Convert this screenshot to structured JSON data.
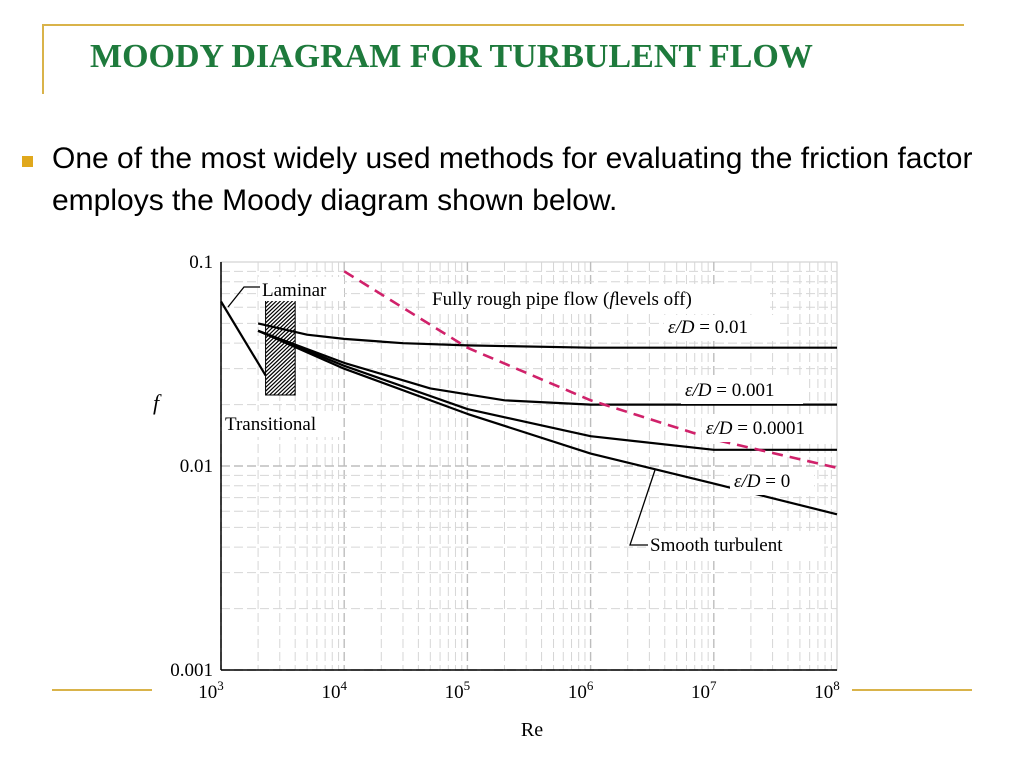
{
  "slide": {
    "title": "MOODY DIAGRAM FOR TURBULENT FLOW",
    "bullet_text": "One of the most widely used methods for evaluating the friction factor employs the Moody diagram shown below.",
    "colors": {
      "title": "#1e7a3c",
      "accent": "#d9b34a",
      "bullet": "#e0a81c",
      "rough_boundary": "#d0216a"
    }
  },
  "chart_data": {
    "type": "line",
    "xlabel": "Re",
    "ylabel": "f",
    "xscale": "log",
    "yscale": "log",
    "xlim": [
      1000,
      100000000
    ],
    "ylim": [
      0.001,
      0.1
    ],
    "grid": true,
    "x_ticks": [
      {
        "value": 1000,
        "base": "10",
        "exp": "3"
      },
      {
        "value": 10000,
        "base": "10",
        "exp": "4"
      },
      {
        "value": 100000,
        "base": "10",
        "exp": "5"
      },
      {
        "value": 1000000,
        "base": "10",
        "exp": "6"
      },
      {
        "value": 10000000,
        "base": "10",
        "exp": "7"
      },
      {
        "value": 100000000,
        "base": "10",
        "exp": "8"
      }
    ],
    "y_ticks": [
      {
        "value": 0.1,
        "label": "0.1"
      },
      {
        "value": 0.01,
        "label": "0.01"
      },
      {
        "value": 0.001,
        "label": "0.001"
      }
    ],
    "series": [
      {
        "name": "Laminar",
        "style": "solid",
        "x": [
          1000,
          2300
        ],
        "y": [
          0.064,
          0.0278
        ]
      },
      {
        "name": "ε/D = 0.01",
        "style": "solid",
        "x": [
          2000,
          5000,
          10000,
          30000,
          100000,
          1000000,
          100000000
        ],
        "y": [
          0.05,
          0.044,
          0.042,
          0.04,
          0.039,
          0.038,
          0.038
        ]
      },
      {
        "name": "ε/D = 0.001",
        "style": "solid",
        "x": [
          2000,
          10000,
          50000,
          200000,
          1000000,
          100000000
        ],
        "y": [
          0.046,
          0.032,
          0.024,
          0.021,
          0.02,
          0.02
        ]
      },
      {
        "name": "ε/D = 0.0001",
        "style": "solid",
        "x": [
          2000,
          10000,
          100000,
          1000000,
          10000000,
          100000000
        ],
        "y": [
          0.046,
          0.031,
          0.019,
          0.014,
          0.012,
          0.012
        ]
      },
      {
        "name": "ε/D = 0",
        "style": "solid",
        "x": [
          2000,
          10000,
          100000,
          1000000,
          10000000,
          100000000
        ],
        "y": [
          0.046,
          0.03,
          0.018,
          0.0115,
          0.0082,
          0.0058
        ]
      },
      {
        "name": "Fully rough pipe flow",
        "style": "dashed",
        "x": [
          10000,
          100000,
          1000000,
          10000000,
          100000000
        ],
        "y": [
          0.09,
          0.038,
          0.021,
          0.0135,
          0.0098
        ]
      }
    ],
    "transitional_region": {
      "x": [
        2300,
        4000
      ]
    },
    "annotations": [
      {
        "id": "laminar",
        "text": "Laminar"
      },
      {
        "id": "transitional",
        "text": "Transitional"
      },
      {
        "id": "fully_rough",
        "text_before": "Fully rough pipe flow (",
        "text_italic": "f",
        "text_after": "levels off)"
      },
      {
        "id": "ed001",
        "text_italic": "ε/D",
        "text_after": " = 0.01"
      },
      {
        "id": "ed0001",
        "text_italic": "ε/D",
        "text_after": " = 0.001"
      },
      {
        "id": "ed00001",
        "text_italic": "ε/D",
        "text_after": " = 0.0001"
      },
      {
        "id": "ed0",
        "text_italic": "ε/D",
        "text_after": " = 0"
      },
      {
        "id": "smooth",
        "text": "Smooth turbulent"
      }
    ]
  }
}
